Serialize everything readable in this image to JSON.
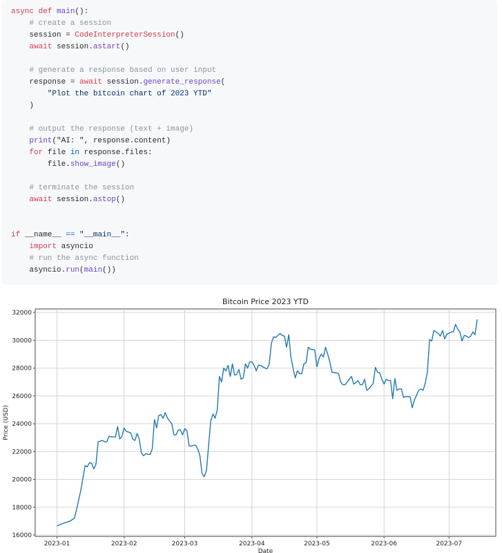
{
  "code": {
    "lines": [
      [
        [
          "async def ",
          "kw"
        ],
        [
          "main",
          "fn"
        ],
        [
          "():",
          "pl"
        ]
      ],
      [
        [
          "    # create a session",
          "cm"
        ]
      ],
      [
        [
          "    session = ",
          "pl"
        ],
        [
          "CodeInterpreterSession",
          "kw"
        ],
        [
          "()",
          "pl"
        ]
      ],
      [
        [
          "    await ",
          "kw"
        ],
        [
          "session.",
          "pl"
        ],
        [
          "astart",
          "fn"
        ],
        [
          "()",
          "pl"
        ]
      ],
      [],
      [
        [
          "    # generate a response based on user input",
          "cm"
        ]
      ],
      [
        [
          "    response = ",
          "pl"
        ],
        [
          "await ",
          "kw"
        ],
        [
          "session.",
          "pl"
        ],
        [
          "generate_response",
          "fn"
        ],
        [
          "(",
          "pl"
        ]
      ],
      [
        [
          "        \"Plot the bitcoin chart of 2023 YTD\"",
          "str"
        ]
      ],
      [
        [
          "    )",
          "pl"
        ]
      ],
      [],
      [
        [
          "    # output the response (text + image)",
          "cm"
        ]
      ],
      [
        [
          "    print",
          "fn"
        ],
        [
          "(\"AI: \", response.content)",
          "pl"
        ]
      ],
      [
        [
          "    for ",
          "kw"
        ],
        [
          "file ",
          "pl"
        ],
        [
          "in ",
          "op"
        ],
        [
          "response.files:",
          "pl"
        ]
      ],
      [
        [
          "        file.",
          "pl"
        ],
        [
          "show_image",
          "fn"
        ],
        [
          "()",
          "pl"
        ]
      ],
      [],
      [
        [
          "    # terminate the session",
          "cm"
        ]
      ],
      [
        [
          "    await ",
          "kw"
        ],
        [
          "session.",
          "pl"
        ],
        [
          "astop",
          "fn"
        ],
        [
          "()",
          "pl"
        ]
      ],
      [],
      [],
      [
        [
          "if ",
          "kw"
        ],
        [
          "__name__ ",
          "pl"
        ],
        [
          "== ",
          "op"
        ],
        [
          "\"__main__\":",
          "str"
        ]
      ],
      [
        [
          "    import ",
          "kw"
        ],
        [
          "asyncio",
          "pl"
        ]
      ],
      [
        [
          "    # run the async function",
          "cm"
        ]
      ],
      [
        [
          "    asyncio.",
          "pl"
        ],
        [
          "run",
          "fn"
        ],
        [
          "(",
          "pl"
        ],
        [
          "main",
          "fn"
        ],
        [
          "())",
          "pl"
        ]
      ]
    ]
  },
  "chart_data": {
    "type": "line",
    "title": "Bitcoin Price 2023 YTD",
    "xlabel": "Date",
    "ylabel": "Price (USD)",
    "ylim": [
      16000,
      32000
    ],
    "yticks": [
      16000,
      18000,
      20000,
      22000,
      24000,
      26000,
      28000,
      30000,
      32000
    ],
    "xticks": [
      "2023-01",
      "2023-02",
      "2023-03",
      "2023-04",
      "2023-05",
      "2023-06",
      "2023-07"
    ],
    "grid": true,
    "line_color": "#1f77b4",
    "series": [
      {
        "x": [
          "2023-01-01",
          "2023-01-04",
          "2023-01-07",
          "2023-01-09",
          "2023-01-10",
          "2023-01-12",
          "2023-01-14",
          "2023-01-15",
          "2023-01-16",
          "2023-01-17",
          "2023-01-18",
          "2023-01-19",
          "2023-01-20",
          "2023-01-22",
          "2023-01-23",
          "2023-01-24",
          "2023-01-25",
          "2023-01-26",
          "2023-01-28",
          "2023-01-29",
          "2023-01-30",
          "2023-01-31",
          "2023-02-01",
          "2023-02-02",
          "2023-02-04",
          "2023-02-05",
          "2023-02-06",
          "2023-02-07",
          "2023-02-08",
          "2023-02-09",
          "2023-02-10",
          "2023-02-11",
          "2023-02-12",
          "2023-02-13",
          "2023-02-14",
          "2023-02-15",
          "2023-02-16",
          "2023-02-17",
          "2023-02-18",
          "2023-02-19",
          "2023-02-20",
          "2023-02-21",
          "2023-02-23",
          "2023-02-24",
          "2023-02-25",
          "2023-02-26",
          "2023-02-27",
          "2023-02-28",
          "2023-03-01",
          "2023-03-02",
          "2023-03-03",
          "2023-03-04",
          "2023-03-05",
          "2023-03-06",
          "2023-03-07",
          "2023-03-08",
          "2023-03-09",
          "2023-03-10",
          "2023-03-11",
          "2023-03-13",
          "2023-03-14",
          "2023-03-15",
          "2023-03-16",
          "2023-03-17",
          "2023-03-18",
          "2023-03-19",
          "2023-03-20",
          "2023-03-21",
          "2023-03-22",
          "2023-03-23",
          "2023-03-24",
          "2023-03-25",
          "2023-03-26",
          "2023-03-27",
          "2023-03-28",
          "2023-03-29",
          "2023-03-30",
          "2023-03-31",
          "2023-04-01",
          "2023-04-02",
          "2023-04-03",
          "2023-04-04",
          "2023-04-05",
          "2023-04-07",
          "2023-04-08",
          "2023-04-09",
          "2023-04-10",
          "2023-04-11",
          "2023-04-12",
          "2023-04-14",
          "2023-04-15",
          "2023-04-16",
          "2023-04-17",
          "2023-04-18",
          "2023-04-19",
          "2023-04-20",
          "2023-04-21",
          "2023-04-22",
          "2023-04-23",
          "2023-04-24",
          "2023-04-25",
          "2023-04-26",
          "2023-04-27",
          "2023-04-28",
          "2023-04-30",
          "2023-05-01",
          "2023-05-02",
          "2023-05-03",
          "2023-05-04",
          "2023-05-05",
          "2023-05-06",
          "2023-05-07",
          "2023-05-08",
          "2023-05-10",
          "2023-05-11",
          "2023-05-12",
          "2023-05-13",
          "2023-05-14",
          "2023-05-15",
          "2023-05-16",
          "2023-05-17",
          "2023-05-18",
          "2023-05-19",
          "2023-05-20",
          "2023-05-21",
          "2023-05-22",
          "2023-05-23",
          "2023-05-24",
          "2023-05-25",
          "2023-05-27",
          "2023-05-28",
          "2023-05-29",
          "2023-05-30",
          "2023-05-31",
          "2023-06-01",
          "2023-06-02",
          "2023-06-03",
          "2023-06-04",
          "2023-06-05",
          "2023-06-06",
          "2023-06-07",
          "2023-06-08",
          "2023-06-09",
          "2023-06-10",
          "2023-06-11",
          "2023-06-12",
          "2023-06-13",
          "2023-06-14",
          "2023-06-15",
          "2023-06-17",
          "2023-06-18",
          "2023-06-19",
          "2023-06-20",
          "2023-06-21",
          "2023-06-22",
          "2023-06-23",
          "2023-06-24",
          "2023-06-25",
          "2023-06-26",
          "2023-06-27",
          "2023-06-28",
          "2023-06-29",
          "2023-06-30",
          "2023-07-01",
          "2023-07-02",
          "2023-07-03",
          "2023-07-04",
          "2023-07-05",
          "2023-07-06",
          "2023-07-07",
          "2023-07-08",
          "2023-07-09",
          "2023-07-10",
          "2023-07-11",
          "2023-07-12",
          "2023-07-13",
          "2023-07-14"
        ],
        "values": [
          16650,
          16850,
          17000,
          17200,
          17800,
          19200,
          21000,
          20900,
          21200,
          21150,
          20750,
          21100,
          22700,
          22800,
          22700,
          22700,
          23100,
          23050,
          23050,
          23800,
          22900,
          23100,
          23700,
          23450,
          23350,
          22900,
          22800,
          23300,
          22900,
          21900,
          21700,
          21850,
          21800,
          21800,
          22200,
          24300,
          23700,
          24600,
          24650,
          24400,
          24800,
          24400,
          24000,
          23200,
          23200,
          23550,
          23550,
          23200,
          23650,
          23500,
          22400,
          22400,
          22450,
          22450,
          22200,
          21700,
          20400,
          20200,
          20650,
          24200,
          24700,
          24400,
          25000,
          27400,
          27000,
          28000,
          27800,
          28200,
          27400,
          28300,
          27500,
          27550,
          27900,
          27200,
          27300,
          28300,
          28000,
          28450,
          28450,
          28200,
          27800,
          28200,
          28200,
          28000,
          27950,
          28300,
          29800,
          30250,
          30200,
          30500,
          30350,
          30300,
          29500,
          30400,
          28800,
          28000,
          27300,
          27800,
          27600,
          27600,
          28300,
          28400,
          29500,
          29350,
          29300,
          28100,
          28700,
          29000,
          28800,
          29500,
          29000,
          28400,
          27700,
          27650,
          27600,
          27000,
          26800,
          26800,
          27000,
          27200,
          27400,
          26850,
          26950,
          27100,
          26800,
          26800,
          27200,
          26400,
          26500,
          26900,
          28050,
          27700,
          27650,
          27200,
          26850,
          27200,
          27100,
          27100,
          25800,
          27250,
          26400,
          26500,
          26500,
          25900,
          25950,
          25950,
          25950,
          25150,
          25700,
          26400,
          26500,
          26400,
          26900,
          27700,
          30050,
          29950,
          30700,
          30600,
          30500,
          30300,
          30700,
          30100,
          30450,
          30500,
          30600,
          30600,
          31150,
          30800,
          30600,
          29950,
          30350,
          30300,
          30200,
          30300,
          30600,
          30400,
          31500
        ]
      }
    ]
  }
}
